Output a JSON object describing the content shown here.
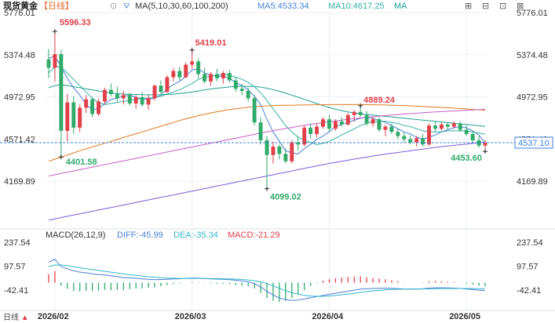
{
  "header": {
    "title": "现货黄金",
    "period": "【日线】",
    "ma_label": "MA(5,10,30,60,100,200)",
    "ma5": "MA5:4533.34",
    "ma10": "MA10:4617.25",
    "ma_more": "MA",
    "macd_label": "MACD(26,12,9)",
    "diff": "DIFF:-45.99",
    "dea": "DEA:-35.34",
    "macd": "MACD:-21.29",
    "corner_label": "日线"
  },
  "colors": {
    "up": "#e0404a",
    "down": "#2faa6a",
    "ma5": "#4a7fd6",
    "ma10": "#35b0a5",
    "ma30": "#1f9e8f",
    "ma60": "#e07a1e",
    "ma100": "#c85fc8",
    "ma200": "#7b5cd6",
    "dea_line": "#2fb7c9",
    "diff_line": "#4a7fd6",
    "price_tag": "#3d7fd9"
  },
  "chart_data": {
    "type": "candlestick",
    "instrument": "现货黄金",
    "period": "日线",
    "y_ticks": [
      "5776.01",
      "5374.48",
      "4972.95",
      "4571.42",
      "4169.89"
    ],
    "y_range": [
      3768.36,
      5776.01
    ],
    "x_ticks": [
      "2026/02",
      "2026/03",
      "2026/04",
      "2026/05"
    ],
    "current_price": "4537.10",
    "annotations": [
      {
        "label": "5596.33",
        "value": 5596.33,
        "type": "high"
      },
      {
        "label": "4401.58",
        "value": 4401.58,
        "type": "low"
      },
      {
        "label": "5419.01",
        "value": 5419.01,
        "type": "high"
      },
      {
        "label": "4099.02",
        "value": 4099.02,
        "type": "low"
      },
      {
        "label": "4889.24",
        "value": 4889.24,
        "type": "high"
      },
      {
        "label": "4453.60",
        "value": 4453.6,
        "type": "low"
      }
    ],
    "candles": [
      {
        "o": 5330,
        "h": 5430,
        "l": 5150,
        "c": 5250
      },
      {
        "o": 5250,
        "h": 5596.33,
        "l": 5120,
        "c": 5380
      },
      {
        "o": 5380,
        "h": 5420,
        "l": 4401.58,
        "c": 4650
      },
      {
        "o": 4650,
        "h": 5000,
        "l": 4550,
        "c": 4920
      },
      {
        "o": 4920,
        "h": 4980,
        "l": 4620,
        "c": 4680
      },
      {
        "o": 4680,
        "h": 4900,
        "l": 4640,
        "c": 4870
      },
      {
        "o": 4870,
        "h": 4990,
        "l": 4820,
        "c": 4950
      },
      {
        "o": 4950,
        "h": 4970,
        "l": 4780,
        "c": 4810
      },
      {
        "o": 4810,
        "h": 4960,
        "l": 4790,
        "c": 4930
      },
      {
        "o": 4930,
        "h": 5060,
        "l": 4900,
        "c": 5040
      },
      {
        "o": 5040,
        "h": 5100,
        "l": 4980,
        "c": 5000
      },
      {
        "o": 5000,
        "h": 5070,
        "l": 4930,
        "c": 4960
      },
      {
        "o": 4960,
        "h": 5030,
        "l": 4900,
        "c": 4990
      },
      {
        "o": 4990,
        "h": 5010,
        "l": 4890,
        "c": 4910
      },
      {
        "o": 4910,
        "h": 4990,
        "l": 4860,
        "c": 4970
      },
      {
        "o": 4970,
        "h": 5020,
        "l": 4880,
        "c": 4900
      },
      {
        "o": 4900,
        "h": 4990,
        "l": 4850,
        "c": 4960
      },
      {
        "o": 4960,
        "h": 5090,
        "l": 4940,
        "c": 5080
      },
      {
        "o": 5080,
        "h": 5130,
        "l": 5000,
        "c": 5020
      },
      {
        "o": 5020,
        "h": 5180,
        "l": 5010,
        "c": 5160
      },
      {
        "o": 5160,
        "h": 5250,
        "l": 5120,
        "c": 5220
      },
      {
        "o": 5220,
        "h": 5260,
        "l": 5130,
        "c": 5160
      },
      {
        "o": 5160,
        "h": 5300,
        "l": 5150,
        "c": 5280
      },
      {
        "o": 5280,
        "h": 5419.01,
        "l": 5240,
        "c": 5310
      },
      {
        "o": 5310,
        "h": 5340,
        "l": 5150,
        "c": 5190
      },
      {
        "o": 5190,
        "h": 5250,
        "l": 5100,
        "c": 5120
      },
      {
        "o": 5120,
        "h": 5210,
        "l": 5080,
        "c": 5190
      },
      {
        "o": 5190,
        "h": 5240,
        "l": 5120,
        "c": 5150
      },
      {
        "o": 5150,
        "h": 5220,
        "l": 5100,
        "c": 5200
      },
      {
        "o": 5200,
        "h": 5230,
        "l": 5110,
        "c": 5130
      },
      {
        "o": 5130,
        "h": 5160,
        "l": 5020,
        "c": 5050
      },
      {
        "o": 5050,
        "h": 5100,
        "l": 4990,
        "c": 5030
      },
      {
        "o": 5030,
        "h": 5060,
        "l": 4930,
        "c": 4960
      },
      {
        "o": 4960,
        "h": 4990,
        "l": 4700,
        "c": 4730
      },
      {
        "o": 4730,
        "h": 4780,
        "l": 4520,
        "c": 4560
      },
      {
        "o": 4560,
        "h": 4600,
        "l": 4099.02,
        "c": 4420
      },
      {
        "o": 4420,
        "h": 4550,
        "l": 4340,
        "c": 4500
      },
      {
        "o": 4500,
        "h": 4520,
        "l": 4380,
        "c": 4430
      },
      {
        "o": 4430,
        "h": 4480,
        "l": 4340,
        "c": 4360
      },
      {
        "o": 4360,
        "h": 4560,
        "l": 4340,
        "c": 4540
      },
      {
        "o": 4540,
        "h": 4600,
        "l": 4460,
        "c": 4520
      },
      {
        "o": 4520,
        "h": 4700,
        "l": 4500,
        "c": 4680
      },
      {
        "o": 4680,
        "h": 4720,
        "l": 4580,
        "c": 4620
      },
      {
        "o": 4620,
        "h": 4720,
        "l": 4590,
        "c": 4690
      },
      {
        "o": 4690,
        "h": 4780,
        "l": 4670,
        "c": 4760
      },
      {
        "o": 4760,
        "h": 4800,
        "l": 4640,
        "c": 4670
      },
      {
        "o": 4670,
        "h": 4760,
        "l": 4650,
        "c": 4740
      },
      {
        "o": 4740,
        "h": 4780,
        "l": 4690,
        "c": 4710
      },
      {
        "o": 4710,
        "h": 4820,
        "l": 4700,
        "c": 4800
      },
      {
        "o": 4800,
        "h": 4850,
        "l": 4740,
        "c": 4830
      },
      {
        "o": 4830,
        "h": 4889.24,
        "l": 4780,
        "c": 4800
      },
      {
        "o": 4800,
        "h": 4840,
        "l": 4700,
        "c": 4720
      },
      {
        "o": 4720,
        "h": 4780,
        "l": 4690,
        "c": 4760
      },
      {
        "o": 4760,
        "h": 4780,
        "l": 4640,
        "c": 4660
      },
      {
        "o": 4660,
        "h": 4710,
        "l": 4600,
        "c": 4690
      },
      {
        "o": 4690,
        "h": 4720,
        "l": 4620,
        "c": 4640
      },
      {
        "o": 4640,
        "h": 4670,
        "l": 4570,
        "c": 4600
      },
      {
        "o": 4600,
        "h": 4640,
        "l": 4540,
        "c": 4570
      },
      {
        "o": 4570,
        "h": 4610,
        "l": 4520,
        "c": 4540
      },
      {
        "o": 4540,
        "h": 4600,
        "l": 4500,
        "c": 4580
      },
      {
        "o": 4580,
        "h": 4620,
        "l": 4500,
        "c": 4520
      },
      {
        "o": 4520,
        "h": 4720,
        "l": 4510,
        "c": 4700
      },
      {
        "o": 4700,
        "h": 4740,
        "l": 4640,
        "c": 4670
      },
      {
        "o": 4670,
        "h": 4730,
        "l": 4650,
        "c": 4710
      },
      {
        "o": 4710,
        "h": 4730,
        "l": 4660,
        "c": 4690
      },
      {
        "o": 4690,
        "h": 4740,
        "l": 4670,
        "c": 4720
      },
      {
        "o": 4720,
        "h": 4740,
        "l": 4640,
        "c": 4660
      },
      {
        "o": 4660,
        "h": 4700,
        "l": 4600,
        "c": 4620
      },
      {
        "o": 4620,
        "h": 4640,
        "l": 4530,
        "c": 4560
      },
      {
        "o": 4560,
        "h": 4600,
        "l": 4490,
        "c": 4510
      },
      {
        "o": 4510,
        "h": 4560,
        "l": 4453.6,
        "c": 4537.1
      }
    ],
    "macd_panel": {
      "y_ticks": [
        "237.54",
        "97.57",
        "-42.41"
      ],
      "y_range": [
        -112.4,
        237.54
      ],
      "diff": [
        120,
        138,
        95,
        82,
        70,
        62,
        58,
        52,
        48,
        46,
        40,
        36,
        30,
        28,
        26,
        22,
        20,
        18,
        19,
        20,
        22,
        23,
        25,
        27,
        26,
        24,
        22,
        21,
        20,
        18,
        14,
        10,
        5,
        -5,
        -25,
        -50,
        -72,
        -90,
        -100,
        -104,
        -102,
        -96,
        -88,
        -82,
        -74,
        -68,
        -62,
        -56,
        -50,
        -44,
        -38,
        -36,
        -34,
        -33,
        -32,
        -33,
        -35,
        -37,
        -38,
        -38,
        -36,
        -32,
        -30,
        -30,
        -31,
        -32,
        -34,
        -37,
        -40,
        -44,
        -45.99
      ],
      "dea": [
        95,
        104,
        104,
        100,
        94,
        88,
        82,
        77,
        72,
        67,
        62,
        57,
        52,
        47,
        43,
        39,
        35,
        32,
        29,
        27,
        26,
        25,
        25,
        25,
        25,
        25,
        24,
        24,
        23,
        22,
        21,
        19,
        16,
        12,
        5,
        -5,
        -19,
        -33,
        -47,
        -59,
        -67,
        -74,
        -78,
        -80,
        -80,
        -78,
        -75,
        -71,
        -67,
        -62,
        -57,
        -52,
        -48,
        -45,
        -42,
        -40,
        -39,
        -38,
        -38,
        -38,
        -37,
        -36,
        -35,
        -34,
        -34,
        -34,
        -34,
        -34,
        -34.5,
        -35,
        -35.34
      ],
      "macd_hist": [
        50,
        68,
        -18,
        -36,
        -48,
        -52,
        -48,
        -50,
        -48,
        -42,
        -44,
        -42,
        -44,
        -38,
        -34,
        -34,
        -30,
        -28,
        -20,
        -14,
        -8,
        -4,
        0,
        4,
        2,
        -2,
        -4,
        -6,
        -6,
        -8,
        -14,
        -18,
        -22,
        -34,
        -60,
        -90,
        -106,
        -114,
        -106,
        -90,
        -70,
        -44,
        -20,
        -4,
        12,
        20,
        26,
        30,
        34,
        36,
        38,
        32,
        28,
        24,
        20,
        14,
        8,
        2,
        0,
        0,
        2,
        8,
        10,
        8,
        6,
        4,
        0,
        -6,
        -11,
        -18,
        -21.29
      ]
    },
    "ma_lines": {
      "ma5": [
        5340,
        5360,
        5260,
        5150,
        5060,
        4990,
        4900,
        4850,
        4860,
        4910,
        4950,
        4960,
        4980,
        4990,
        4970,
        4950,
        4950,
        4960,
        4990,
        5050,
        5090,
        5120,
        5170,
        5230,
        5240,
        5200,
        5180,
        5170,
        5170,
        5150,
        5110,
        5080,
        5040,
        4980,
        4900,
        4760,
        4640,
        4550,
        4460,
        4440,
        4430,
        4480,
        4520,
        4570,
        4600,
        4640,
        4690,
        4710,
        4730,
        4750,
        4770,
        4780,
        4770,
        4750,
        4730,
        4700,
        4670,
        4640,
        4620,
        4590,
        4570,
        4590,
        4610,
        4640,
        4660,
        4680,
        4690,
        4680,
        4650,
        4610,
        4533.34
      ],
      "ma10": [
        5200,
        5260,
        5260,
        5200,
        5140,
        5080,
        5020,
        4960,
        4920,
        4900,
        4910,
        4920,
        4930,
        4940,
        4950,
        4960,
        4960,
        4970,
        4980,
        5000,
        5020,
        5040,
        5070,
        5100,
        5140,
        5160,
        5170,
        5180,
        5190,
        5180,
        5160,
        5140,
        5110,
        5070,
        5010,
        4940,
        4860,
        4780,
        4700,
        4640,
        4590,
        4560,
        4540,
        4520,
        4530,
        4550,
        4580,
        4610,
        4640,
        4670,
        4700,
        4720,
        4740,
        4740,
        4740,
        4730,
        4720,
        4700,
        4690,
        4670,
        4650,
        4640,
        4640,
        4640,
        4650,
        4650,
        4650,
        4650,
        4640,
        4630,
        4617.25
      ],
      "ma30": [
        5060,
        5080,
        5090,
        5080,
        5070,
        5060,
        5050,
        5040,
        5030,
        5020,
        5010,
        5005,
        5000,
        4998,
        4996,
        4994,
        4993,
        4993,
        4994,
        4996,
        5000,
        5005,
        5012,
        5020,
        5030,
        5040,
        5048,
        5056,
        5062,
        5068,
        5072,
        5074,
        5074,
        5072,
        5066,
        5056,
        5042,
        5026,
        5008,
        4990,
        4970,
        4950,
        4930,
        4910,
        4890,
        4872,
        4856,
        4842,
        4830,
        4820,
        4812,
        4806,
        4800,
        4794,
        4788,
        4782,
        4776,
        4770,
        4764,
        4758,
        4752,
        4746,
        4740,
        4734,
        4728,
        4722,
        4716,
        4710,
        4704,
        4698,
        4692
      ],
      "ma60": [
        4360,
        4380,
        4400,
        4420,
        4440,
        4460,
        4478,
        4496,
        4514,
        4532,
        4550,
        4568,
        4586,
        4604,
        4622,
        4640,
        4658,
        4676,
        4694,
        4712,
        4730,
        4748,
        4764,
        4780,
        4794,
        4808,
        4820,
        4832,
        4842,
        4852,
        4860,
        4868,
        4874,
        4880,
        4884,
        4888,
        4890,
        4892,
        4893,
        4894,
        4895,
        4896,
        4897,
        4898,
        4899,
        4900,
        4900,
        4900,
        4900,
        4900,
        4900,
        4899,
        4898,
        4897,
        4896,
        4894,
        4892,
        4890,
        4888,
        4885,
        4882,
        4879,
        4876,
        4873,
        4870,
        4866,
        4862,
        4858,
        4854,
        4850,
        4846
      ],
      "ma100": [
        4220,
        4232,
        4244,
        4256,
        4268,
        4280,
        4292,
        4304,
        4316,
        4328,
        4340,
        4352,
        4364,
        4376,
        4388,
        4400,
        4412,
        4424,
        4436,
        4448,
        4460,
        4472,
        4484,
        4496,
        4508,
        4520,
        4532,
        4544,
        4556,
        4568,
        4580,
        4592,
        4604,
        4616,
        4628,
        4640,
        4652,
        4662,
        4672,
        4682,
        4692,
        4702,
        4712,
        4720,
        4728,
        4736,
        4744,
        4752,
        4760,
        4766,
        4772,
        4778,
        4784,
        4790,
        4795,
        4800,
        4805,
        4810,
        4814,
        4818,
        4822,
        4826,
        4830,
        4833,
        4836,
        4839,
        4842,
        4845,
        4848,
        4851,
        4854
      ],
      "ma200": [
        3800,
        3812,
        3824,
        3836,
        3848,
        3860,
        3872,
        3884,
        3896,
        3908,
        3920,
        3932,
        3944,
        3956,
        3968,
        3980,
        3992,
        4004,
        4016,
        4028,
        4040,
        4052,
        4064,
        4076,
        4088,
        4100,
        4112,
        4124,
        4136,
        4148,
        4160,
        4172,
        4184,
        4196,
        4208,
        4220,
        4232,
        4244,
        4256,
        4268,
        4280,
        4292,
        4304,
        4316,
        4328,
        4340,
        4350,
        4360,
        4370,
        4380,
        4390,
        4400,
        4410,
        4420,
        4428,
        4436,
        4444,
        4452,
        4460,
        4468,
        4476,
        4484,
        4492,
        4500,
        4506,
        4512,
        4518,
        4524,
        4530,
        4536,
        4542
      ]
    }
  }
}
